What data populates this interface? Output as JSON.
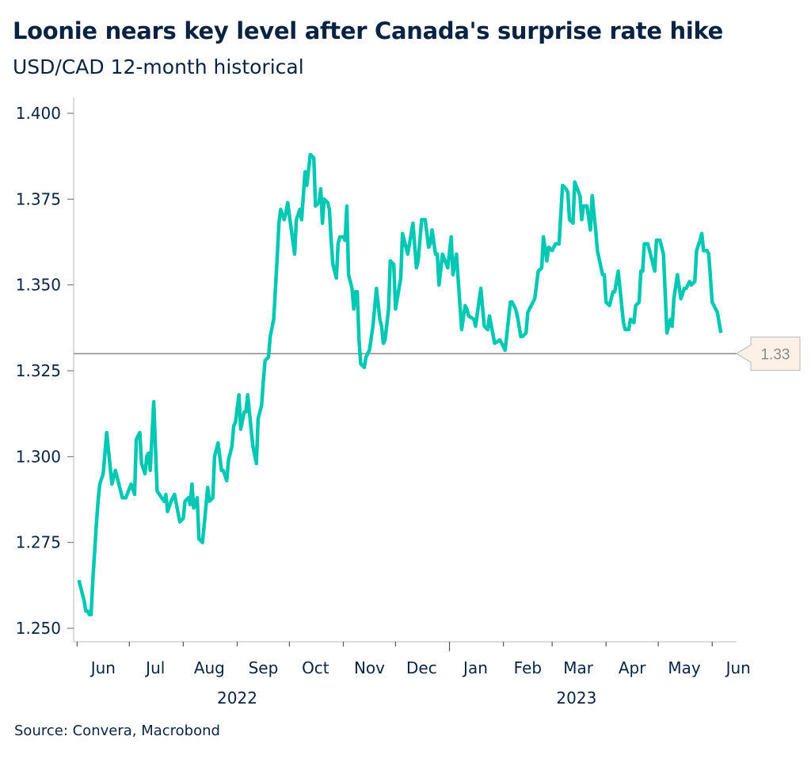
{
  "chart_data": {
    "type": "line",
    "title": "Loonie nears key level after Canada's surprise rate hike",
    "subtitle": "USD/CAD 12-month historical",
    "source": "Source: Convera, Macrobond",
    "xlabel": "",
    "ylabel": "",
    "ylim": [
      1.25,
      1.4
    ],
    "xlim": [
      "2022-05-30",
      "2023-06-15"
    ],
    "yticks": [
      "1.250",
      "1.275",
      "1.300",
      "1.325",
      "1.350",
      "1.375",
      "1.400"
    ],
    "xticks": [
      {
        "label": "Jun",
        "date": "2022-06-16"
      },
      {
        "label": "Jul",
        "date": "2022-07-16"
      },
      {
        "label": "Aug",
        "date": "2022-08-16"
      },
      {
        "label": "Sep",
        "date": "2022-09-16"
      },
      {
        "label": "Oct",
        "date": "2022-10-16"
      },
      {
        "label": "Nov",
        "date": "2022-11-16"
      },
      {
        "label": "Dec",
        "date": "2022-12-16"
      },
      {
        "label": "Jan",
        "date": "2023-01-16"
      },
      {
        "label": "Feb",
        "date": "2023-02-15"
      },
      {
        "label": "Mar",
        "date": "2023-03-16"
      },
      {
        "label": "Apr",
        "date": "2023-04-16"
      },
      {
        "label": "May",
        "date": "2023-05-16"
      },
      {
        "label": "Jun",
        "date": "2023-06-16"
      }
    ],
    "year_labels": [
      {
        "label": "2022",
        "date": "2022-09-01"
      },
      {
        "label": "2023",
        "date": "2023-03-15"
      }
    ],
    "month_boundaries": [
      "2022-06-01",
      "2022-07-01",
      "2022-08-01",
      "2022-09-01",
      "2022-10-01",
      "2022-11-01",
      "2022-12-01",
      "2023-01-01",
      "2023-02-01",
      "2023-03-01",
      "2023-04-01",
      "2023-05-01",
      "2023-06-01"
    ],
    "year_boundary": "2023-01-01",
    "grid": false,
    "reference_line": {
      "value": 1.33,
      "label": "1.33",
      "color": "#8a8a8a",
      "label_bg": "#fdf1e7"
    },
    "series_color": "#00c8b3",
    "series": [
      {
        "x": [
          "2022-06-02",
          "2022-06-04",
          "2022-06-05",
          "2022-06-06",
          "2022-06-07",
          "2022-06-08",
          "2022-06-09",
          "2022-06-10",
          "2022-06-12",
          "2022-06-13",
          "2022-06-14",
          "2022-06-16",
          "2022-06-18",
          "2022-06-21",
          "2022-06-23",
          "2022-06-25",
          "2022-06-27",
          "2022-06-29",
          "2022-07-02",
          "2022-07-04",
          "2022-07-05",
          "2022-07-07",
          "2022-07-08",
          "2022-07-10",
          "2022-07-11",
          "2022-07-12",
          "2022-07-13",
          "2022-07-15",
          "2022-07-17",
          "2022-07-21",
          "2022-07-22",
          "2022-07-23",
          "2022-07-25",
          "2022-07-27",
          "2022-07-30",
          "2022-08-01",
          "2022-08-02",
          "2022-08-04",
          "2022-08-05",
          "2022-08-06",
          "2022-08-07",
          "2022-08-09",
          "2022-08-10",
          "2022-08-12",
          "2022-08-13",
          "2022-08-15",
          "2022-08-16",
          "2022-08-18",
          "2022-08-19",
          "2022-08-21",
          "2022-08-23",
          "2022-08-24",
          "2022-08-26",
          "2022-08-27",
          "2022-08-29",
          "2022-08-30",
          "2022-08-31",
          "2022-09-02",
          "2022-09-03",
          "2022-09-05",
          "2022-09-06",
          "2022-09-07",
          "2022-09-09",
          "2022-09-10",
          "2022-09-12",
          "2022-09-13",
          "2022-09-15",
          "2022-09-16",
          "2022-09-17",
          "2022-09-19",
          "2022-09-20",
          "2022-09-22",
          "2022-09-24",
          "2022-09-25",
          "2022-09-26",
          "2022-09-28",
          "2022-09-29",
          "2022-09-30",
          "2022-10-04",
          "2022-10-05",
          "2022-10-07",
          "2022-10-08",
          "2022-10-10",
          "2022-10-11",
          "2022-10-13",
          "2022-10-15",
          "2022-10-16",
          "2022-10-18",
          "2022-10-19",
          "2022-10-20",
          "2022-10-21",
          "2022-10-23",
          "2022-10-24",
          "2022-10-25",
          "2022-10-26",
          "2022-10-28",
          "2022-10-29",
          "2022-10-30",
          "2022-11-01",
          "2022-11-02",
          "2022-11-03",
          "2022-11-04",
          "2022-11-06",
          "2022-11-07",
          "2022-11-08",
          "2022-11-09",
          "2022-11-10",
          "2022-11-11",
          "2022-11-13",
          "2022-11-14",
          "2022-11-16",
          "2022-11-18",
          "2022-11-20",
          "2022-11-22",
          "2022-11-23",
          "2022-11-24",
          "2022-11-25",
          "2022-11-27",
          "2022-11-28",
          "2022-11-30",
          "2022-12-01",
          "2022-12-04",
          "2022-12-05",
          "2022-12-08",
          "2022-12-11",
          "2022-12-13",
          "2022-12-14",
          "2022-12-16",
          "2022-12-18",
          "2022-12-20",
          "2022-12-21",
          "2022-12-22",
          "2022-12-24",
          "2022-12-25",
          "2022-12-26",
          "2022-12-28",
          "2022-12-31",
          "2023-01-02",
          "2023-01-03",
          "2023-01-05",
          "2023-01-08",
          "2023-01-10",
          "2023-01-11",
          "2023-01-12",
          "2023-01-15",
          "2023-01-16",
          "2023-01-19",
          "2023-01-21",
          "2023-01-23",
          "2023-01-24",
          "2023-01-27",
          "2023-01-30",
          "2023-02-02",
          "2023-02-05",
          "2023-02-06",
          "2023-02-08",
          "2023-02-09",
          "2023-02-11",
          "2023-02-12",
          "2023-02-14",
          "2023-02-15",
          "2023-02-16",
          "2023-02-18",
          "2023-02-19",
          "2023-02-21",
          "2023-02-23",
          "2023-02-24",
          "2023-02-26",
          "2023-02-27",
          "2023-03-01",
          "2023-03-03",
          "2023-03-05",
          "2023-03-07",
          "2023-03-09",
          "2023-03-10",
          "2023-03-11",
          "2023-03-13",
          "2023-03-14",
          "2023-03-17",
          "2023-03-18",
          "2023-03-19",
          "2023-03-21",
          "2023-03-23",
          "2023-03-24",
          "2023-03-26",
          "2023-03-27",
          "2023-03-30",
          "2023-03-31",
          "2023-04-01",
          "2023-04-03",
          "2023-04-05",
          "2023-04-06",
          "2023-04-08",
          "2023-04-11",
          "2023-04-12",
          "2023-04-14",
          "2023-04-15",
          "2023-04-17",
          "2023-04-18",
          "2023-04-20",
          "2023-04-21",
          "2023-04-22",
          "2023-04-23",
          "2023-04-25",
          "2023-04-27",
          "2023-04-29",
          "2023-04-30",
          "2023-05-02",
          "2023-05-04",
          "2023-05-06",
          "2023-05-08",
          "2023-05-09",
          "2023-05-10",
          "2023-05-12",
          "2023-05-14",
          "2023-05-16",
          "2023-05-17",
          "2023-05-19",
          "2023-05-20",
          "2023-05-22",
          "2023-05-23",
          "2023-05-25",
          "2023-05-26",
          "2023-05-27",
          "2023-05-29",
          "2023-05-30",
          "2023-06-01",
          "2023-06-03",
          "2023-06-04",
          "2023-06-06"
        ],
        "y": [
          1.264,
          1.26,
          1.258,
          1.255,
          1.255,
          1.254,
          1.254,
          1.264,
          1.28,
          1.287,
          1.292,
          1.295,
          1.307,
          1.292,
          1.296,
          1.292,
          1.288,
          1.288,
          1.292,
          1.289,
          1.305,
          1.307,
          1.298,
          1.295,
          1.3,
          1.301,
          1.296,
          1.316,
          1.29,
          1.287,
          1.289,
          1.284,
          1.287,
          1.289,
          1.281,
          1.282,
          1.287,
          1.288,
          1.286,
          1.292,
          1.285,
          1.288,
          1.276,
          1.275,
          1.28,
          1.291,
          1.287,
          1.288,
          1.3,
          1.304,
          1.296,
          1.296,
          1.293,
          1.299,
          1.303,
          1.309,
          1.31,
          1.318,
          1.308,
          1.313,
          1.313,
          1.318,
          1.308,
          1.303,
          1.298,
          1.311,
          1.315,
          1.322,
          1.328,
          1.329,
          1.335,
          1.34,
          1.358,
          1.368,
          1.372,
          1.369,
          1.371,
          1.374,
          1.359,
          1.369,
          1.372,
          1.369,
          1.383,
          1.379,
          1.388,
          1.387,
          1.373,
          1.374,
          1.378,
          1.368,
          1.375,
          1.374,
          1.372,
          1.363,
          1.356,
          1.352,
          1.362,
          1.364,
          1.364,
          1.363,
          1.373,
          1.353,
          1.349,
          1.343,
          1.348,
          1.348,
          1.334,
          1.327,
          1.326,
          1.329,
          1.331,
          1.338,
          1.349,
          1.34,
          1.338,
          1.333,
          1.334,
          1.343,
          1.357,
          1.356,
          1.343,
          1.352,
          1.365,
          1.359,
          1.368,
          1.355,
          1.357,
          1.369,
          1.369,
          1.361,
          1.362,
          1.366,
          1.359,
          1.359,
          1.35,
          1.359,
          1.355,
          1.364,
          1.353,
          1.359,
          1.337,
          1.344,
          1.343,
          1.341,
          1.34,
          1.338,
          1.349,
          1.338,
          1.337,
          1.341,
          1.333,
          1.334,
          1.331,
          1.345,
          1.345,
          1.343,
          1.341,
          1.335,
          1.335,
          1.336,
          1.342,
          1.343,
          1.345,
          1.346,
          1.354,
          1.355,
          1.364,
          1.357,
          1.361,
          1.36,
          1.362,
          1.362,
          1.379,
          1.378,
          1.377,
          1.369,
          1.368,
          1.38,
          1.376,
          1.369,
          1.373,
          1.373,
          1.366,
          1.376,
          1.366,
          1.36,
          1.353,
          1.353,
          1.345,
          1.344,
          1.348,
          1.348,
          1.354,
          1.339,
          1.337,
          1.337,
          1.34,
          1.339,
          1.344,
          1.345,
          1.354,
          1.354,
          1.362,
          1.362,
          1.358,
          1.354,
          1.363,
          1.363,
          1.359,
          1.336,
          1.34,
          1.338,
          1.346,
          1.353,
          1.346,
          1.349,
          1.349,
          1.351,
          1.35,
          1.351,
          1.36,
          1.363,
          1.365,
          1.36,
          1.36,
          1.359,
          1.345,
          1.343,
          1.342,
          1.336
        ]
      }
    ]
  }
}
